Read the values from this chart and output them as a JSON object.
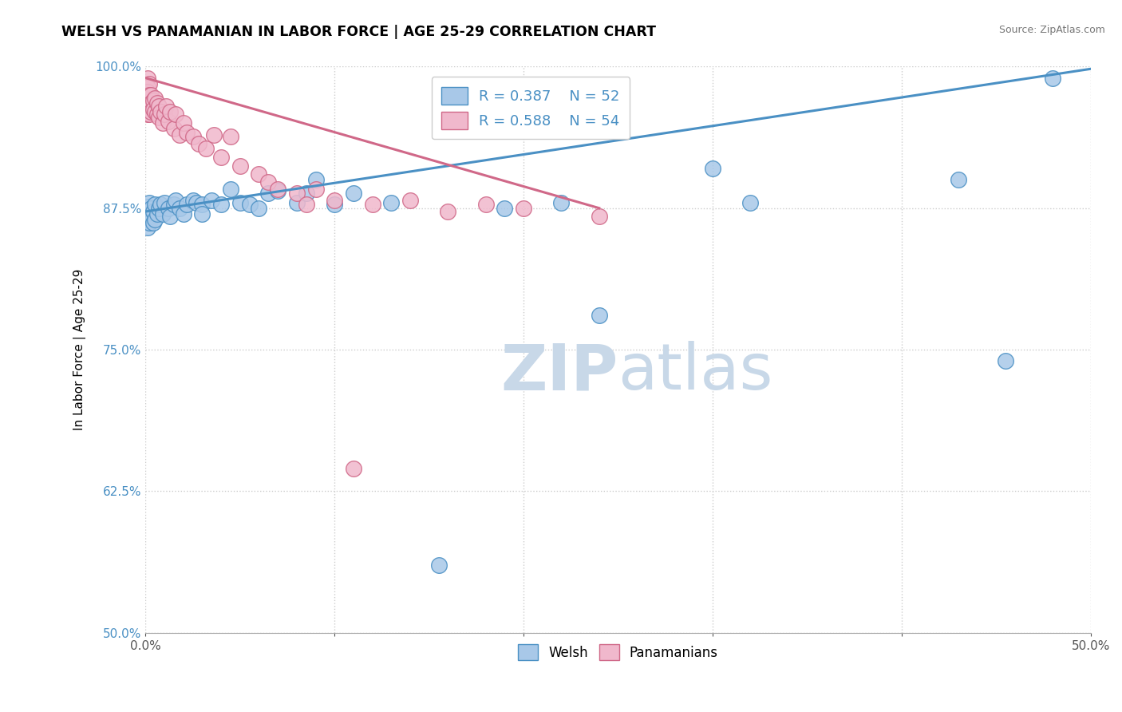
{
  "title": "WELSH VS PANAMANIAN IN LABOR FORCE | AGE 25-29 CORRELATION CHART",
  "source_text": "Source: ZipAtlas.com",
  "ylabel": "In Labor Force | Age 25-29",
  "xlim": [
    0.0,
    0.5
  ],
  "ylim": [
    0.5,
    1.0
  ],
  "xticks": [
    0.0,
    0.1,
    0.2,
    0.3,
    0.4,
    0.5
  ],
  "xticklabels": [
    "0.0%",
    "",
    "",
    "",
    "",
    "50.0%"
  ],
  "yticks": [
    0.5,
    0.625,
    0.75,
    0.875,
    1.0
  ],
  "yticklabels": [
    "50.0%",
    "62.5%",
    "75.0%",
    "87.5%",
    "100.0%"
  ],
  "welsh_color": "#a8c8e8",
  "welsh_edge_color": "#4a90c4",
  "panamanian_color": "#f0b8cc",
  "panamanian_edge_color": "#d06888",
  "welsh_line_color": "#4a90c4",
  "panamanian_line_color": "#d06888",
  "welsh_R": 0.387,
  "welsh_N": 52,
  "panamanian_R": 0.588,
  "panamanian_N": 54,
  "watermark_bold": "ZIP",
  "watermark_light": "atlas",
  "watermark_color": "#c8d8e8",
  "grid_color": "#cccccc",
  "grid_style": "--",
  "welsh_x": [
    0.001,
    0.001,
    0.001,
    0.001,
    0.002,
    0.002,
    0.002,
    0.003,
    0.003,
    0.004,
    0.004,
    0.005,
    0.005,
    0.006,
    0.007,
    0.008,
    0.009,
    0.01,
    0.012,
    0.013,
    0.015,
    0.016,
    0.018,
    0.02,
    0.022,
    0.025,
    0.027,
    0.03,
    0.03,
    0.035,
    0.04,
    0.045,
    0.05,
    0.055,
    0.06,
    0.065,
    0.07,
    0.08,
    0.085,
    0.09,
    0.1,
    0.11,
    0.13,
    0.155,
    0.19,
    0.22,
    0.24,
    0.3,
    0.32,
    0.43,
    0.455,
    0.48
  ],
  "welsh_y": [
    0.876,
    0.87,
    0.865,
    0.858,
    0.88,
    0.873,
    0.862,
    0.875,
    0.868,
    0.872,
    0.862,
    0.878,
    0.865,
    0.87,
    0.875,
    0.878,
    0.87,
    0.88,
    0.875,
    0.868,
    0.878,
    0.882,
    0.875,
    0.87,
    0.878,
    0.882,
    0.88,
    0.878,
    0.87,
    0.882,
    0.878,
    0.892,
    0.88,
    0.878,
    0.875,
    0.888,
    0.89,
    0.88,
    0.888,
    0.9,
    0.878,
    0.888,
    0.88,
    0.56,
    0.875,
    0.88,
    0.78,
    0.91,
    0.88,
    0.9,
    0.74,
    0.99
  ],
  "panamanian_x": [
    0.001,
    0.001,
    0.001,
    0.001,
    0.001,
    0.001,
    0.001,
    0.002,
    0.002,
    0.002,
    0.002,
    0.003,
    0.003,
    0.003,
    0.004,
    0.004,
    0.005,
    0.005,
    0.006,
    0.006,
    0.007,
    0.007,
    0.008,
    0.009,
    0.01,
    0.011,
    0.012,
    0.013,
    0.015,
    0.016,
    0.018,
    0.02,
    0.022,
    0.025,
    0.028,
    0.032,
    0.036,
    0.04,
    0.045,
    0.05,
    0.06,
    0.065,
    0.07,
    0.08,
    0.085,
    0.09,
    0.1,
    0.11,
    0.12,
    0.14,
    0.16,
    0.18,
    0.2,
    0.24
  ],
  "panamanian_y": [
    0.99,
    0.982,
    0.975,
    0.968,
    0.978,
    0.965,
    0.958,
    0.985,
    0.975,
    0.965,
    0.958,
    0.975,
    0.968,
    0.96,
    0.97,
    0.962,
    0.972,
    0.96,
    0.968,
    0.958,
    0.965,
    0.955,
    0.96,
    0.95,
    0.958,
    0.965,
    0.952,
    0.96,
    0.945,
    0.958,
    0.94,
    0.95,
    0.942,
    0.938,
    0.932,
    0.928,
    0.94,
    0.92,
    0.938,
    0.912,
    0.905,
    0.898,
    0.892,
    0.888,
    0.878,
    0.892,
    0.882,
    0.645,
    0.878,
    0.882,
    0.872,
    0.878,
    0.875,
    0.868
  ],
  "welsh_line_x0": 0.0,
  "welsh_line_y0": 0.872,
  "welsh_line_x1": 0.5,
  "welsh_line_y1": 0.998,
  "pana_line_x0": 0.0,
  "pana_line_y0": 0.99,
  "pana_line_x1": 0.24,
  "pana_line_y1": 0.875
}
